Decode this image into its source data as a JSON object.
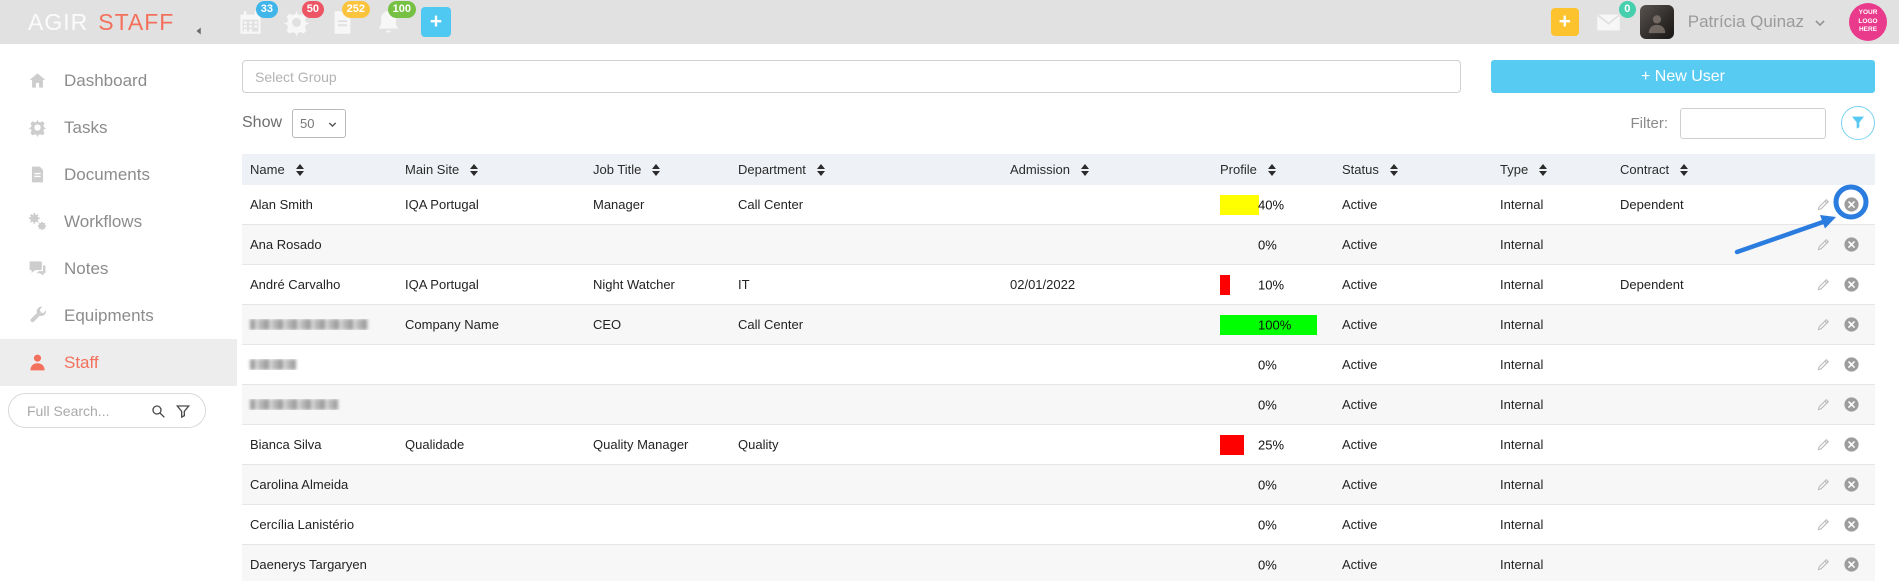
{
  "brand": {
    "primary": "AGIR",
    "secondary": "STAFF"
  },
  "topbar": {
    "modules": [
      {
        "name": "calendar",
        "count": "33",
        "badge_color": "#3fb5ea"
      },
      {
        "name": "gear",
        "count": "50",
        "badge_color": "#ed5565"
      },
      {
        "name": "document",
        "count": "252",
        "badge_color": "#fcc33d"
      },
      {
        "name": "bell",
        "count": "100",
        "badge_color": "#76c043"
      }
    ],
    "quick_add_label": "+",
    "right_add_label": "+",
    "inbox_count": "0",
    "user_name": "Patrícia Quinaz",
    "logo_placeholder": "YOUR LOGO HERE"
  },
  "sidebar": {
    "items": [
      {
        "label": "Dashboard",
        "icon": "home"
      },
      {
        "label": "Tasks",
        "icon": "gear"
      },
      {
        "label": "Documents",
        "icon": "document"
      },
      {
        "label": "Workflows",
        "icon": "gears"
      },
      {
        "label": "Notes",
        "icon": "chat"
      },
      {
        "label": "Equipments",
        "icon": "wrench"
      },
      {
        "label": "Staff",
        "icon": "person",
        "active": true
      }
    ],
    "search_placeholder": "Full Search..."
  },
  "toolbar": {
    "group_placeholder": "Select Group",
    "new_user_label": "+ New User",
    "show_label": "Show",
    "show_value": "50",
    "filter_label": "Filter:",
    "filter_value": ""
  },
  "table": {
    "columns": [
      {
        "label": "Name"
      },
      {
        "label": "Main Site"
      },
      {
        "label": "Job Title"
      },
      {
        "label": "Department"
      },
      {
        "label": "Admission"
      },
      {
        "label": "Profile"
      },
      {
        "label": "Status"
      },
      {
        "label": "Type"
      },
      {
        "label": "Contract"
      }
    ],
    "rows": [
      {
        "name": "Alan Smith",
        "main_site": "IQA Portugal",
        "job_title": "Manager",
        "department": "Call Center",
        "admission": "",
        "profile_label": "40%",
        "profile_pct": 40,
        "profile_color": "#ffff00",
        "status": "Active",
        "type": "Internal",
        "contract": "Dependent",
        "redacted": false,
        "annotated": true
      },
      {
        "name": "Ana Rosado",
        "main_site": "",
        "job_title": "",
        "department": "",
        "admission": "",
        "profile_label": "0%",
        "profile_pct": 0,
        "profile_color": "",
        "status": "Active",
        "type": "Internal",
        "contract": "",
        "redacted": false
      },
      {
        "name": "André Carvalho",
        "main_site": "IQA Portugal",
        "job_title": "Night Watcher",
        "department": "IT",
        "admission": "02/01/2022",
        "profile_label": "10%",
        "profile_pct": 10,
        "profile_color": "#ff0000",
        "status": "Active",
        "type": "Internal",
        "contract": "Dependent",
        "redacted": false
      },
      {
        "name": "",
        "main_site": "Company Name",
        "job_title": "CEO",
        "department": "Call Center",
        "admission": "",
        "profile_label": "100%",
        "profile_pct": 100,
        "profile_color": "#00ff00",
        "status": "Active",
        "type": "Internal",
        "contract": "",
        "redacted": true,
        "redacted_width": 118
      },
      {
        "name": "",
        "main_site": "",
        "job_title": "",
        "department": "",
        "admission": "",
        "profile_label": "0%",
        "profile_pct": 0,
        "profile_color": "",
        "status": "Active",
        "type": "Internal",
        "contract": "",
        "redacted": true,
        "redacted_width": 46
      },
      {
        "name": "",
        "main_site": "",
        "job_title": "",
        "department": "",
        "admission": "",
        "profile_label": "0%",
        "profile_pct": 0,
        "profile_color": "",
        "status": "Active",
        "type": "Internal",
        "contract": "",
        "redacted": true,
        "redacted_width": 88
      },
      {
        "name": "Bianca Silva",
        "main_site": "Qualidade",
        "job_title": "Quality Manager",
        "department": "Quality",
        "admission": "",
        "profile_label": "25%",
        "profile_pct": 25,
        "profile_color": "#ff0000",
        "status": "Active",
        "type": "Internal",
        "contract": "",
        "redacted": false
      },
      {
        "name": "Carolina Almeida",
        "main_site": "",
        "job_title": "",
        "department": "",
        "admission": "",
        "profile_label": "0%",
        "profile_pct": 0,
        "profile_color": "",
        "status": "Active",
        "type": "Internal",
        "contract": "",
        "redacted": false
      },
      {
        "name": "Cercília Lanistério",
        "main_site": "",
        "job_title": "",
        "department": "",
        "admission": "",
        "profile_label": "0%",
        "profile_pct": 0,
        "profile_color": "",
        "status": "Active",
        "type": "Internal",
        "contract": "",
        "redacted": false
      },
      {
        "name": "Daenerys Targaryen",
        "main_site": "",
        "job_title": "",
        "department": "",
        "admission": "",
        "profile_label": "0%",
        "profile_pct": 0,
        "profile_color": "",
        "status": "Active",
        "type": "Internal",
        "contract": "",
        "redacted": false
      }
    ]
  },
  "annotation": {
    "color": "#2b7cdf",
    "target": "delete-button-row-1"
  }
}
